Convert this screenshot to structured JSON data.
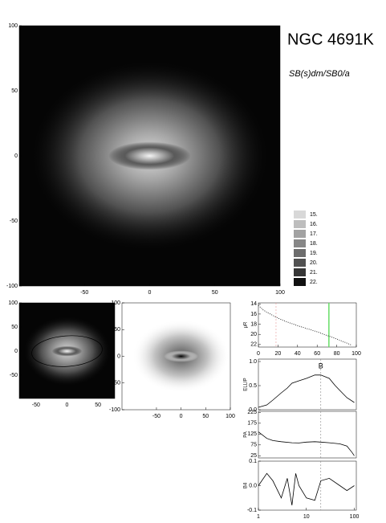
{
  "header": {
    "title": "NGC 4691K",
    "classification": "SB(s)dm/SB0/a"
  },
  "chart_data": [
    {
      "type": "image",
      "inverted": false,
      "xlim": [
        -100,
        100
      ],
      "ylim": [
        -100,
        100
      ],
      "xticks": [
        -50,
        0,
        50,
        100
      ],
      "yticks": [
        -100,
        -50,
        0,
        50,
        100
      ]
    },
    {
      "type": "colorbar",
      "ticks": [
        {
          "value": 15,
          "label": "15."
        },
        {
          "value": 16,
          "label": "16."
        },
        {
          "value": 17,
          "label": "17."
        },
        {
          "value": 18,
          "label": "18."
        },
        {
          "value": 19,
          "label": "19."
        },
        {
          "value": 20,
          "label": "20."
        },
        {
          "value": 21,
          "label": "21."
        },
        {
          "value": 22,
          "label": "22."
        }
      ],
      "colors": [
        "#d8d8d8",
        "#bdbdbd",
        "#a2a2a2",
        "#878787",
        "#6c6c6c",
        "#515151",
        "#363636",
        "#111111"
      ]
    },
    {
      "type": "image",
      "inverted": false,
      "ellipse": true,
      "xlim": [
        -77,
        77
      ],
      "ylim": [
        -98,
        100
      ],
      "xticks": [
        -50,
        0,
        50
      ],
      "yticks": [
        -50,
        0,
        50,
        100
      ]
    },
    {
      "type": "image",
      "inverted": true,
      "xlim": [
        -120,
        100
      ],
      "ylim": [
        -100,
        100
      ],
      "xticks": [
        -50,
        0,
        50,
        100
      ],
      "yticks": [
        -100,
        -50,
        0,
        50,
        100
      ]
    },
    {
      "type": "line",
      "ylabel": "μR",
      "color": "#000000",
      "x": [
        0,
        5,
        10,
        15,
        20,
        30,
        40,
        50,
        60,
        70,
        80,
        90,
        95
      ],
      "values": [
        14.3,
        15.2,
        15.8,
        16.3,
        16.8,
        17.6,
        18.3,
        18.9,
        19.5,
        20.2,
        20.9,
        21.7,
        22.1
      ],
      "xlim": [
        0,
        100
      ],
      "ylim": [
        22.5,
        13.8
      ],
      "xticks": [
        0,
        20,
        40,
        60,
        80,
        100
      ],
      "yticks": [
        14,
        16,
        18,
        20,
        22
      ],
      "vlines": [
        {
          "x": 18,
          "color": "#e89a9a",
          "style": "dashed"
        },
        {
          "x": 72,
          "color": "#66dd66",
          "style": "solid"
        }
      ]
    },
    {
      "type": "line",
      "ylabel": "ELLIP",
      "color": "#000000",
      "xlog": true,
      "x": [
        1,
        1.5,
        2,
        3,
        4,
        5,
        7,
        10,
        15,
        20,
        30,
        40,
        50,
        70,
        100
      ],
      "values": [
        0.05,
        0.1,
        0.2,
        0.35,
        0.45,
        0.55,
        0.6,
        0.65,
        0.72,
        0.72,
        0.65,
        0.5,
        0.4,
        0.25,
        0.15
      ],
      "xlim": [
        1,
        110
      ],
      "ylim": [
        0,
        1.05
      ],
      "yticks": [
        {
          "value": 0,
          "label": "0.0"
        },
        {
          "value": 0.5,
          "label": "0.5"
        },
        {
          "value": 1,
          "label": "1.0"
        }
      ],
      "vlines": [
        {
          "x": 20,
          "color": "#888888",
          "style": "dashed"
        }
      ],
      "annotations": [
        {
          "text": "B",
          "x": 20,
          "y": 0.9
        }
      ]
    },
    {
      "type": "line",
      "ylabel": "PA",
      "color": "#000000",
      "xlog": true,
      "x": [
        1,
        1.5,
        2,
        3,
        5,
        7,
        10,
        15,
        20,
        30,
        50,
        70,
        90,
        100
      ],
      "values": [
        135,
        105,
        95,
        90,
        85,
        84,
        88,
        90,
        88,
        85,
        80,
        70,
        40,
        25
      ],
      "xlim": [
        1,
        110
      ],
      "ylim": [
        15,
        230
      ],
      "yticks": [
        25,
        75,
        125,
        175,
        225
      ],
      "vlines": [
        {
          "x": 20,
          "color": "#888888",
          "style": "dashed"
        }
      ]
    },
    {
      "type": "line",
      "ylabel": "B4",
      "color": "#000000",
      "xlog": true,
      "x": [
        1,
        1.5,
        2,
        3,
        4,
        5,
        6,
        7,
        10,
        15,
        20,
        30,
        50,
        70,
        100
      ],
      "values": [
        0,
        0.05,
        0.02,
        -0.05,
        0.03,
        -0.08,
        0.05,
        0,
        -0.05,
        -0.06,
        0.02,
        0.03,
        0,
        -0.02,
        0
      ],
      "xlim": [
        1,
        110
      ],
      "ylim": [
        -0.1,
        0.1
      ],
      "xticks": [
        1,
        10,
        100
      ],
      "yticks": [
        {
          "value": -0.1,
          "label": "-0.1"
        },
        {
          "value": 0,
          "label": "0.0"
        },
        {
          "value": 0.1,
          "label": "0.1"
        }
      ],
      "vlines": [
        {
          "x": 20,
          "color": "#888888",
          "style": "dashed"
        }
      ]
    }
  ]
}
